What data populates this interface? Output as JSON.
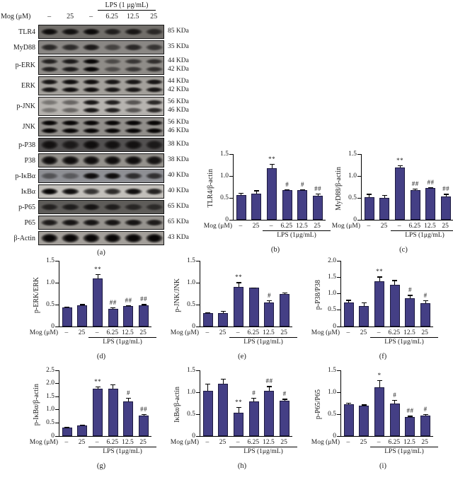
{
  "panel_a": {
    "letter": "(a)",
    "header": {
      "lps_label": "LPS (1 μg/mL)",
      "mog_label": "Mog (μM)",
      "doses": [
        "–",
        "25",
        "–",
        "6.25",
        "12.5",
        "25"
      ]
    },
    "rows": [
      {
        "label": "TLR4",
        "kda": [
          "85 KDa"
        ],
        "bands": 1,
        "bg": "#716e6a",
        "thick": false,
        "intensities": [
          0.95,
          0.9,
          0.97,
          0.78,
          0.85,
          0.68
        ]
      },
      {
        "label": "MyD88",
        "kda": [
          "35 KDa"
        ],
        "bands": 1,
        "bg": "#8a8784",
        "thick": false,
        "intensities": [
          0.75,
          0.72,
          0.85,
          0.55,
          0.75,
          0.65
        ]
      },
      {
        "label": "p-ERK",
        "kda": [
          "44 KDa",
          "42 KDa"
        ],
        "bands": 2,
        "bg": "#8f8c88",
        "thick": false,
        "intensities": [
          0.8,
          0.85,
          1.0,
          0.5,
          0.65,
          0.7
        ]
      },
      {
        "label": "ERK",
        "kda": [
          "44 KDa",
          "42 KDa"
        ],
        "bands": 2,
        "bg": "#a3a09b",
        "thick": false,
        "intensities": [
          0.9,
          0.95,
          0.95,
          0.9,
          0.9,
          0.9
        ]
      },
      {
        "label": "p-JNK",
        "kda": [
          "56 KDa",
          "46 KDa"
        ],
        "bands": 2,
        "bg": "#b6b3af",
        "thick": false,
        "intensities": [
          0.35,
          0.45,
          0.9,
          0.85,
          0.55,
          0.8
        ]
      },
      {
        "label": "JNK",
        "kda": [
          "56 KDa",
          "46 KDa"
        ],
        "bands": 2,
        "bg": "#918e8a",
        "thick": true,
        "intensities": [
          1,
          1,
          1,
          1,
          1,
          1
        ]
      },
      {
        "label": "p-P38",
        "kda": [
          "38 KDa"
        ],
        "bands": 1,
        "bg": "#525050",
        "thick": true,
        "intensities": [
          0.85,
          0.75,
          0.9,
          0.85,
          0.85,
          0.75
        ]
      },
      {
        "label": "P38",
        "kda": [
          "38 KDa"
        ],
        "bands": 1,
        "bg": "#94918c",
        "thick": true,
        "intensities": [
          0.95,
          0.95,
          0.95,
          0.95,
          0.95,
          0.9
        ]
      },
      {
        "label": "p-IκBα",
        "kda": [
          "40 KDa"
        ],
        "bands": 1,
        "bg": "#8e8f94",
        "thick": false,
        "intensities": [
          0.45,
          0.4,
          0.95,
          0.95,
          0.72,
          0.7
        ]
      },
      {
        "label": "IκBα",
        "kda": [
          "40 KDa"
        ],
        "bands": 1,
        "bg": "#c2bfba",
        "thick": false,
        "intensities": [
          1,
          0.95,
          0.75,
          0.8,
          0.95,
          0.85
        ]
      },
      {
        "label": "p-P65",
        "kda": [
          "65 KDa"
        ],
        "bands": 1,
        "bg": "#5e5c59",
        "thick": false,
        "intensities": [
          0.7,
          0.75,
          0.85,
          0.75,
          0.65,
          0.6
        ]
      },
      {
        "label": "P65",
        "kda": [
          "65 KDa"
        ],
        "bands": 1,
        "bg": "#96938e",
        "thick": false,
        "intensities": [
          0.85,
          0.9,
          0.9,
          0.9,
          0.9,
          0.85
        ]
      },
      {
        "label": "β-Actin",
        "kda": [
          "43 KDa"
        ],
        "bands": 1,
        "bg": "#a39f9a",
        "thick": true,
        "intensities": [
          1,
          1,
          1,
          1,
          1,
          1
        ]
      }
    ]
  },
  "chart_data": [
    {
      "type": "bar",
      "letter": "(b)",
      "ylabel": "TLR4/β-actin",
      "ymax": 1.5,
      "yticks": [
        "0",
        "0.5",
        "1.0",
        "1.5"
      ],
      "mog_label": "Mog (μM)",
      "categories": [
        "–",
        "25",
        "–",
        "6.25",
        "12.5",
        "25"
      ],
      "values": [
        0.57,
        0.6,
        1.17,
        0.68,
        0.67,
        0.55
      ],
      "errors": [
        0.05,
        0.07,
        0.1,
        0.02,
        0.03,
        0.05
      ],
      "annotations": [
        "",
        "",
        "**",
        "#",
        "#",
        "##"
      ],
      "lps_label": "LPS (1μg/mL)"
    },
    {
      "type": "bar",
      "letter": "(c)",
      "ylabel": "MyD88/β-actin",
      "ymax": 1.5,
      "yticks": [
        "0",
        "0.5",
        "1.0",
        "1.5"
      ],
      "mog_label": "Mog (μM)",
      "categories": [
        "–",
        "25",
        "–",
        "6.25",
        "12.5",
        "25"
      ],
      "values": [
        0.52,
        0.5,
        1.2,
        0.68,
        0.72,
        0.53
      ],
      "errors": [
        0.07,
        0.07,
        0.04,
        0.03,
        0.02,
        0.06
      ],
      "annotations": [
        "",
        "",
        "**",
        "##",
        "##",
        "##"
      ],
      "lps_label": "LPS (1μg/mL)"
    },
    {
      "type": "bar",
      "letter": "(d)",
      "ylabel": "p-ERK/ERK",
      "ymax": 1.5,
      "yticks": [
        "0",
        "0.5",
        "1.0",
        "1.5"
      ],
      "mog_label": "Mog (μM)",
      "categories": [
        "–",
        "25",
        "–",
        "6.25",
        "12.5",
        "25"
      ],
      "values": [
        0.43,
        0.48,
        1.1,
        0.4,
        0.46,
        0.48
      ],
      "errors": [
        0.02,
        0.03,
        0.09,
        0.04,
        0.02,
        0.03
      ],
      "annotations": [
        "",
        "",
        "**",
        "##",
        "##",
        "##"
      ],
      "lps_label": "LPS (1μg/mL)"
    },
    {
      "type": "bar",
      "letter": "(e)",
      "ylabel": "p-JNK/JNK",
      "ymax": 1.5,
      "yticks": [
        "0",
        "0.5",
        "1.0",
        "1.5"
      ],
      "mog_label": "Mog (μM)",
      "categories": [
        "–",
        "25",
        "–",
        "6.25",
        "12.5",
        "25"
      ],
      "values": [
        0.31,
        0.31,
        0.91,
        0.88,
        0.55,
        0.74
      ],
      "errors": [
        0.02,
        0.05,
        0.1,
        0.01,
        0.05,
        0.04
      ],
      "annotations": [
        "",
        "",
        "**",
        "",
        "#",
        ""
      ],
      "lps_label": "LPS (1μg/mL)"
    },
    {
      "type": "bar",
      "letter": "(f)",
      "ylabel": "p-P38/P38",
      "ymax": 2.0,
      "yticks": [
        "0",
        "0.5",
        "1.0",
        "1.5",
        "2.0"
      ],
      "mog_label": "Mog (μM)",
      "categories": [
        "–",
        "25",
        "–",
        "6.25",
        "12.5",
        "25"
      ],
      "values": [
        0.73,
        0.63,
        1.38,
        1.27,
        0.86,
        0.72
      ],
      "errors": [
        0.08,
        0.1,
        0.14,
        0.14,
        0.1,
        0.07
      ],
      "annotations": [
        "",
        "",
        "**",
        "",
        "#",
        "#"
      ],
      "lps_label": "LPS (1μg/mL)"
    },
    {
      "type": "bar",
      "letter": "(g)",
      "ylabel": "p-IκBα/β-actin",
      "ymax": 2.5,
      "yticks": [
        "0",
        "0.5",
        "1.0",
        "1.5",
        "2.0",
        "2.5"
      ],
      "mog_label": "Mog (μM)",
      "categories": [
        "–",
        "25",
        "–",
        "6.25",
        "12.5",
        "25"
      ],
      "values": [
        0.31,
        0.41,
        1.79,
        1.8,
        1.32,
        0.78
      ],
      "errors": [
        0.03,
        0.03,
        0.09,
        0.17,
        0.13,
        0.05
      ],
      "annotations": [
        "",
        "",
        "**",
        "",
        "#",
        "##"
      ],
      "lps_label": "LPS (1μg/mL)"
    },
    {
      "type": "bar",
      "letter": "(h)",
      "ylabel": "IκBα/β-actin",
      "ymax": 1.5,
      "yticks": [
        "0",
        "0.5",
        "1.0",
        "1.5"
      ],
      "mog_label": "Mog (μM)",
      "categories": [
        "–",
        "25",
        "–",
        "6.25",
        "12.5",
        "25"
      ],
      "values": [
        1.04,
        1.2,
        0.53,
        0.79,
        1.04,
        0.81
      ],
      "errors": [
        0.15,
        0.11,
        0.13,
        0.08,
        0.1,
        0.04
      ],
      "annotations": [
        "",
        "",
        "**",
        "#",
        "##",
        "#"
      ],
      "lps_label": "LPS (1μg/mL)"
    },
    {
      "type": "bar",
      "letter": "(i)",
      "ylabel": "p-P65/P65",
      "ymax": 1.5,
      "yticks": [
        "0",
        "0.5",
        "1.0",
        "1.5"
      ],
      "mog_label": "Mog (μM)",
      "categories": [
        "–",
        "25",
        "–",
        "6.25",
        "12.5",
        "25"
      ],
      "values": [
        0.72,
        0.69,
        1.11,
        0.74,
        0.43,
        0.46
      ],
      "errors": [
        0.04,
        0.03,
        0.16,
        0.09,
        0.03,
        0.04
      ],
      "annotations": [
        "",
        "",
        "*",
        "#",
        "##",
        "#"
      ],
      "lps_label": "LPS (1μg/mL)"
    }
  ],
  "colors": {
    "bar_fill": "#443f85",
    "bar_border": "#1d1a40",
    "axis": "#000000"
  }
}
